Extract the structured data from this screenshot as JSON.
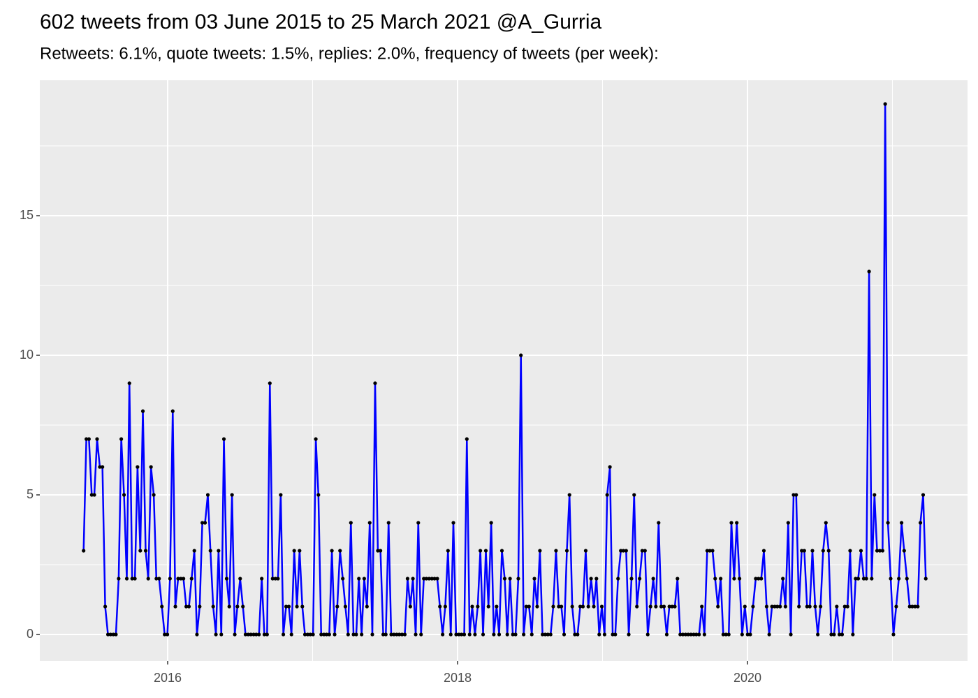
{
  "chart_data": {
    "type": "line",
    "title": "602 tweets from 03 June 2015 to 25 March 2021 @A_Gurria",
    "subtitle": "Retweets: 6.1%, quote tweets: 1.5%, replies: 2.0%, frequency of tweets (per week):",
    "xlim": [
      2015.118,
      2021.518
    ],
    "ylim": [
      -0.95,
      19.85
    ],
    "xticks": [
      2016,
      2018,
      2020
    ],
    "yticks": [
      0,
      5,
      10,
      15
    ],
    "grid": true,
    "color": "#0000ff",
    "point_color": "#000000",
    "x": [
      2015.42,
      2015.439,
      2015.457,
      2015.476,
      2015.494,
      2015.513,
      2015.532,
      2015.55,
      2015.569,
      2015.588,
      2015.606,
      2015.625,
      2015.643,
      2015.662,
      2015.68,
      2015.699,
      2015.718,
      2015.736,
      2015.755,
      2015.774,
      2015.792,
      2015.811,
      2015.829,
      2015.848,
      2015.866,
      2015.885,
      2015.904,
      2015.922,
      2015.941,
      2015.96,
      2015.979,
      2015.998,
      2016.016,
      2016.035,
      2016.053,
      2016.072,
      2016.091,
      2016.109,
      2016.128,
      2016.147,
      2016.165,
      2016.184,
      2016.202,
      2016.221,
      2016.239,
      2016.258,
      2016.277,
      2016.295,
      2016.314,
      2016.333,
      2016.351,
      2016.37,
      2016.388,
      2016.407,
      2016.425,
      2016.444,
      2016.463,
      2016.481,
      2016.5,
      2016.519,
      2016.537,
      2016.556,
      2016.574,
      2016.593,
      2016.611,
      2016.63,
      2016.649,
      2016.667,
      2016.686,
      2016.705,
      2016.724,
      2016.743,
      2016.761,
      2016.78,
      2016.798,
      2016.817,
      2016.836,
      2016.854,
      2016.873,
      2016.892,
      2016.91,
      2016.929,
      2016.947,
      2016.966,
      2016.984,
      2017.003,
      2017.022,
      2017.04,
      2017.059,
      2017.078,
      2017.096,
      2017.115,
      2017.133,
      2017.152,
      2017.17,
      2017.189,
      2017.208,
      2017.226,
      2017.245,
      2017.264,
      2017.282,
      2017.301,
      2017.319,
      2017.338,
      2017.356,
      2017.375,
      2017.394,
      2017.412,
      2017.431,
      2017.45,
      2017.468,
      2017.487,
      2017.505,
      2017.524,
      2017.542,
      2017.561,
      2017.58,
      2017.598,
      2017.617,
      2017.636,
      2017.655,
      2017.674,
      2017.692,
      2017.711,
      2017.729,
      2017.748,
      2017.767,
      2017.785,
      2017.804,
      2017.823,
      2017.841,
      2017.86,
      2017.878,
      2017.897,
      2017.915,
      2017.934,
      2017.953,
      2017.971,
      2017.99,
      2018.009,
      2018.027,
      2018.046,
      2018.064,
      2018.083,
      2018.101,
      2018.12,
      2018.139,
      2018.157,
      2018.176,
      2018.195,
      2018.213,
      2018.232,
      2018.25,
      2018.269,
      2018.287,
      2018.306,
      2018.325,
      2018.343,
      2018.362,
      2018.381,
      2018.4,
      2018.419,
      2018.437,
      2018.456,
      2018.474,
      2018.493,
      2018.512,
      2018.53,
      2018.549,
      2018.568,
      2018.586,
      2018.605,
      2018.623,
      2018.642,
      2018.66,
      2018.679,
      2018.698,
      2018.716,
      2018.735,
      2018.754,
      2018.772,
      2018.791,
      2018.809,
      2018.828,
      2018.846,
      2018.865,
      2018.884,
      2018.902,
      2018.921,
      2018.94,
      2018.958,
      2018.977,
      2018.995,
      2019.014,
      2019.032,
      2019.051,
      2019.07,
      2019.088,
      2019.107,
      2019.126,
      2019.144,
      2019.163,
      2019.181,
      2019.2,
      2019.218,
      2019.237,
      2019.256,
      2019.274,
      2019.293,
      2019.312,
      2019.331,
      2019.35,
      2019.368,
      2019.387,
      2019.405,
      2019.424,
      2019.443,
      2019.461,
      2019.48,
      2019.499,
      2019.517,
      2019.536,
      2019.554,
      2019.573,
      2019.591,
      2019.61,
      2019.629,
      2019.647,
      2019.666,
      2019.685,
      2019.703,
      2019.722,
      2019.74,
      2019.759,
      2019.777,
      2019.796,
      2019.815,
      2019.833,
      2019.852,
      2019.871,
      2019.889,
      2019.908,
      2019.926,
      2019.945,
      2019.963,
      2019.982,
      2020.001,
      2020.019,
      2020.038,
      2020.057,
      2020.076,
      2020.095,
      2020.113,
      2020.132,
      2020.15,
      2020.169,
      2020.188,
      2020.206,
      2020.225,
      2020.244,
      2020.262,
      2020.281,
      2020.299,
      2020.318,
      2020.336,
      2020.355,
      2020.374,
      2020.392,
      2020.411,
      2020.43,
      2020.448,
      2020.467,
      2020.485,
      2020.504,
      2020.522,
      2020.541,
      2020.56,
      2020.578,
      2020.597,
      2020.616,
      2020.634,
      2020.653,
      2020.671,
      2020.69,
      2020.708,
      2020.727,
      2020.746,
      2020.764,
      2020.783,
      2020.802,
      2020.82,
      2020.839,
      2020.857,
      2020.876,
      2020.894,
      2020.913,
      2020.932,
      2020.95,
      2020.969,
      2020.988,
      2021.007,
      2021.026,
      2021.044,
      2021.063,
      2021.081,
      2021.1,
      2021.119,
      2021.137,
      2021.156,
      2021.175,
      2021.193,
      2021.212,
      2021.23
    ],
    "values": [
      3,
      7,
      7,
      5,
      5,
      7,
      6,
      6,
      1,
      0,
      0,
      0,
      0,
      2,
      7,
      5,
      2,
      9,
      2,
      2,
      6,
      3,
      8,
      3,
      2,
      6,
      5,
      2,
      2,
      1,
      0,
      0,
      2,
      8,
      1,
      2,
      2,
      2,
      1,
      1,
      2,
      3,
      0,
      1,
      4,
      4,
      5,
      3,
      1,
      0,
      3,
      0,
      7,
      2,
      1,
      5,
      0,
      1,
      2,
      1,
      0,
      0,
      0,
      0,
      0,
      0,
      2,
      0,
      0,
      9,
      2,
      2,
      2,
      5,
      0,
      1,
      1,
      0,
      3,
      1,
      3,
      1,
      0,
      0,
      0,
      0,
      7,
      5,
      0,
      0,
      0,
      0,
      3,
      0,
      1,
      3,
      2,
      1,
      0,
      4,
      0,
      0,
      2,
      0,
      2,
      1,
      4,
      0,
      9,
      3,
      3,
      0,
      0,
      4,
      0,
      0,
      0,
      0,
      0,
      0,
      2,
      1,
      2,
      0,
      4,
      0,
      2,
      2,
      2,
      2,
      2,
      2,
      1,
      0,
      1,
      3,
      0,
      4,
      0,
      0,
      0,
      0,
      7,
      0,
      1,
      0,
      1,
      3,
      0,
      3,
      1,
      4,
      0,
      1,
      0,
      3,
      2,
      0,
      2,
      0,
      0,
      2,
      10,
      0,
      1,
      1,
      0,
      2,
      1,
      3,
      0,
      0,
      0,
      0,
      1,
      3,
      1,
      1,
      0,
      3,
      5,
      1,
      0,
      0,
      1,
      1,
      3,
      1,
      2,
      1,
      2,
      0,
      1,
      0,
      5,
      6,
      0,
      0,
      2,
      3,
      3,
      3,
      0,
      2,
      5,
      1,
      2,
      3,
      3,
      0,
      1,
      2,
      1,
      4,
      1,
      1,
      0,
      1,
      1,
      1,
      2,
      0,
      0,
      0,
      0,
      0,
      0,
      0,
      0,
      1,
      0,
      3,
      3,
      3,
      2,
      1,
      2,
      0,
      0,
      0,
      4,
      2,
      4,
      2,
      0,
      1,
      0,
      0,
      1,
      2,
      2,
      2,
      3,
      1,
      0,
      1,
      1,
      1,
      1,
      2,
      1,
      4,
      0,
      5,
      5,
      1,
      3,
      3,
      1,
      1,
      3,
      1,
      0,
      1,
      3,
      4,
      3,
      0,
      0,
      1,
      0,
      0,
      1,
      1,
      3,
      0,
      2,
      2,
      3,
      2,
      2,
      13,
      2,
      5,
      3,
      3,
      3,
      19,
      4,
      2,
      0,
      1,
      2,
      4,
      3,
      2,
      1,
      1,
      1,
      1,
      4,
      5,
      2
    ]
  }
}
